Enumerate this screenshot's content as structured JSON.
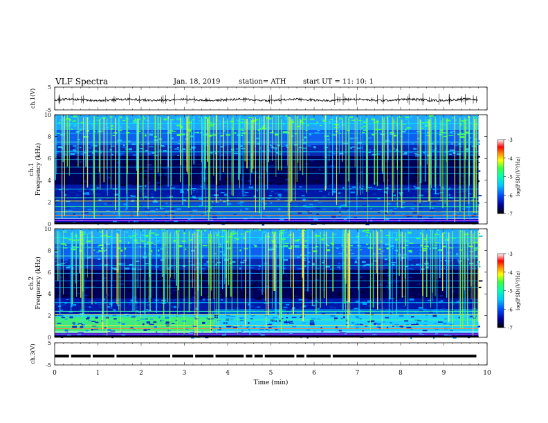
{
  "header": {
    "title": "VLF  Spectra",
    "date": "Jan.  18,  2019",
    "station": "station= ATH",
    "start": "start  UT  =   11: 10: 1"
  },
  "colors": {
    "spectrogram_scale": [
      "#000000",
      "#0000a0",
      "#0050ff",
      "#00c8ff",
      "#00ffb0",
      "#40ff40",
      "#ffff00",
      "#ff8000",
      "#ff0000",
      "#ffffff"
    ],
    "trace": "#000000"
  },
  "chart_data": [
    {
      "type": "line",
      "name": "ch1-voltage",
      "ylabel": "ch.1(V)",
      "yticks": [
        5,
        -5
      ],
      "ylim": [
        -5,
        5
      ],
      "baseline": -0.6,
      "xlim": [
        0,
        10
      ]
    },
    {
      "type": "heatmap",
      "name": "ch1-spectrogram",
      "ylabel_lines": [
        "ch.1",
        "Frequency (kHz)"
      ],
      "yticks": [
        0,
        2,
        4,
        6,
        8,
        10
      ],
      "ylim": [
        0,
        10
      ],
      "xlim": [
        0,
        9.8
      ],
      "colorbar": {
        "label": "log(PSD)(V²/Hz)",
        "ticks": [
          -3,
          -4,
          -5,
          -6,
          -7
        ],
        "range": [
          -7,
          -3
        ]
      }
    },
    {
      "type": "heatmap",
      "name": "ch2-spectrogram",
      "ylabel_lines": [
        "ch.2",
        "Frequency (kHz)"
      ],
      "yticks": [
        0,
        2,
        4,
        6,
        8,
        10
      ],
      "ylim": [
        0,
        10
      ],
      "xlim": [
        0,
        9.8
      ],
      "colorbar": {
        "label": "log(PSD)(V²/Hz)",
        "ticks": [
          -3,
          -4,
          -5,
          -6,
          -7
        ],
        "range": [
          -7,
          -3
        ]
      }
    },
    {
      "type": "line",
      "name": "ch3-voltage",
      "ylabel": "ch.3(V)",
      "yticks": [
        5,
        -5
      ],
      "ylim": [
        -5,
        5
      ],
      "level": -1,
      "xlim": [
        0,
        9.8
      ],
      "gaps_min": [
        0.38,
        0.88,
        1.43,
        2.72,
        3.25,
        3.72,
        4.42,
        4.62,
        4.86,
        5.59,
        5.82,
        6.43
      ]
    }
  ],
  "xaxis": {
    "label": "Time  (min)",
    "ticks": [
      0,
      1,
      2,
      3,
      4,
      5,
      6,
      7,
      8,
      9,
      10
    ],
    "xlim": [
      0,
      10
    ]
  }
}
